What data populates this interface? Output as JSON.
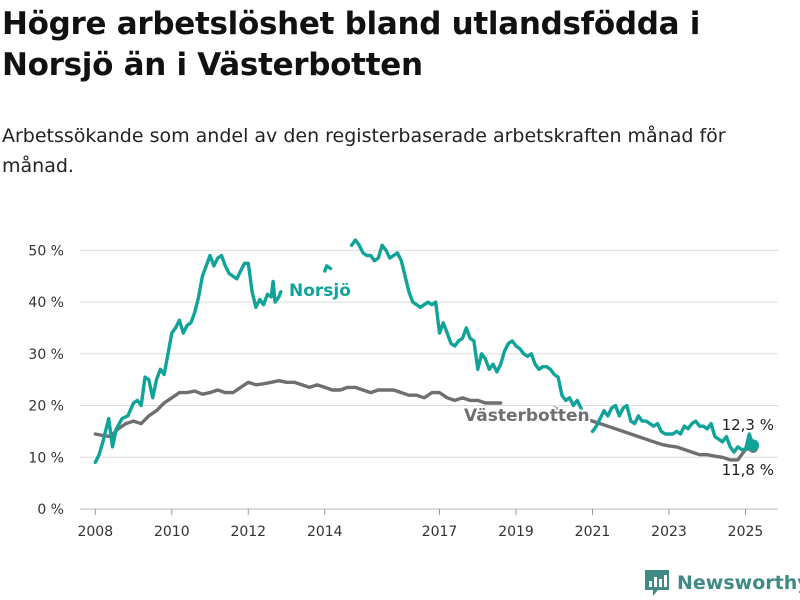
{
  "title": "Högre arbetslöshet bland utlandsfödda i Norsjö än i Västerbotten",
  "subtitle": "Arbetssökande som andel av den registerbaserade arbetskraften månad för månad.",
  "brand": {
    "name": "Newsworthy",
    "icon": "newsworthy-chart-logo-icon"
  },
  "colors": {
    "norsjo": "#10a39a",
    "vasterbotten": "#6f6f72",
    "grid": "#dddddd",
    "brand": "#3f8a85"
  },
  "chart_data": {
    "type": "line",
    "x_unit": "year",
    "xlim": [
      2007.6,
      2025.85
    ],
    "ylim": [
      0,
      52
    ],
    "grid": "horizontal",
    "y_ticks": [
      0,
      10,
      20,
      30,
      40,
      50
    ],
    "y_tick_labels": [
      "0 %",
      "10 %",
      "20 %",
      "30 %",
      "40 %",
      "50 %"
    ],
    "x_ticks": [
      2008,
      2010,
      2012,
      2014,
      2017,
      2019,
      2021,
      2023,
      2025
    ],
    "x_tick_labels": [
      "2008",
      "2010",
      "2012",
      "2014",
      "2017",
      "2019",
      "2021",
      "2023",
      "2025"
    ],
    "series": [
      {
        "name": "Norsjö",
        "color": "#10a39a",
        "end_label": "12,3 %",
        "points": [
          [
            2008.0,
            9
          ],
          [
            2008.1,
            10.5
          ],
          [
            2008.2,
            13
          ],
          [
            2008.3,
            16
          ],
          [
            2008.35,
            17.5
          ],
          [
            2008.45,
            12
          ],
          [
            2008.55,
            15.5
          ],
          [
            2008.7,
            17.5
          ],
          [
            2008.85,
            18
          ],
          [
            2009.0,
            20.5
          ],
          [
            2009.1,
            21
          ],
          [
            2009.2,
            20
          ],
          [
            2009.3,
            25.5
          ],
          [
            2009.4,
            25
          ],
          [
            2009.5,
            21.5
          ],
          [
            2009.6,
            25
          ],
          [
            2009.7,
            27
          ],
          [
            2009.8,
            26
          ],
          [
            2009.9,
            30
          ],
          [
            2010.0,
            34
          ],
          [
            2010.1,
            35
          ],
          [
            2010.2,
            36.5
          ],
          [
            2010.3,
            34
          ],
          [
            2010.4,
            35.5
          ],
          [
            2010.5,
            36
          ],
          [
            2010.6,
            38
          ],
          [
            2010.7,
            41
          ],
          [
            2010.8,
            45
          ],
          [
            2010.9,
            47
          ],
          [
            2011.0,
            49
          ],
          [
            2011.1,
            47
          ],
          [
            2011.2,
            48.5
          ],
          [
            2011.3,
            49
          ],
          [
            2011.4,
            47
          ],
          [
            2011.5,
            45.5
          ],
          [
            2011.6,
            45
          ],
          [
            2011.7,
            44.5
          ],
          [
            2011.8,
            46
          ],
          [
            2011.9,
            47.5
          ],
          [
            2012.0,
            47.5
          ],
          [
            2012.1,
            42
          ],
          [
            2012.2,
            39
          ],
          [
            2012.3,
            40.5
          ],
          [
            2012.4,
            39.5
          ],
          [
            2012.5,
            41.5
          ],
          [
            2012.6,
            41
          ],
          [
            2012.65,
            44
          ],
          [
            2012.7,
            40
          ],
          [
            2012.8,
            41
          ],
          [
            2012.85,
            42
          ],
          null,
          [
            2014.0,
            46
          ],
          [
            2014.05,
            47
          ],
          [
            2014.15,
            46.5
          ],
          null,
          [
            2014.7,
            51
          ],
          [
            2014.8,
            52
          ],
          [
            2014.9,
            51
          ],
          [
            2015.0,
            49.5
          ],
          [
            2015.1,
            49
          ],
          [
            2015.2,
            49
          ],
          [
            2015.3,
            48
          ],
          [
            2015.4,
            48.5
          ],
          [
            2015.5,
            51
          ],
          [
            2015.6,
            50
          ],
          [
            2015.7,
            48.5
          ],
          [
            2015.8,
            49
          ],
          [
            2015.9,
            49.5
          ],
          [
            2016.0,
            48
          ],
          [
            2016.1,
            45
          ],
          [
            2016.2,
            42
          ],
          [
            2016.3,
            40
          ],
          [
            2016.4,
            39.5
          ],
          [
            2016.5,
            39
          ],
          [
            2016.6,
            39.5
          ],
          [
            2016.7,
            40
          ],
          [
            2016.8,
            39.5
          ],
          [
            2016.9,
            40
          ],
          [
            2017.0,
            34
          ],
          [
            2017.1,
            36
          ],
          [
            2017.2,
            34
          ],
          [
            2017.3,
            32
          ],
          [
            2017.4,
            31.5
          ],
          [
            2017.5,
            32.5
          ],
          [
            2017.6,
            33
          ],
          [
            2017.7,
            35
          ],
          [
            2017.8,
            33
          ],
          [
            2017.9,
            32.5
          ],
          [
            2018.0,
            27
          ],
          [
            2018.1,
            30
          ],
          [
            2018.2,
            29
          ],
          [
            2018.3,
            27
          ],
          [
            2018.4,
            28
          ],
          [
            2018.5,
            26.5
          ],
          [
            2018.6,
            28
          ],
          [
            2018.7,
            30.5
          ],
          [
            2018.8,
            32
          ],
          [
            2018.9,
            32.5
          ],
          [
            2019.0,
            31.5
          ],
          [
            2019.1,
            31
          ],
          [
            2019.2,
            30
          ],
          [
            2019.3,
            29.5
          ],
          [
            2019.4,
            30
          ],
          [
            2019.5,
            28
          ],
          [
            2019.6,
            27
          ],
          [
            2019.7,
            27.5
          ],
          [
            2019.8,
            27.5
          ],
          [
            2019.9,
            27
          ],
          [
            2020.0,
            26
          ],
          [
            2020.1,
            25.5
          ],
          [
            2020.2,
            22
          ],
          [
            2020.3,
            21
          ],
          [
            2020.4,
            21.5
          ],
          [
            2020.5,
            20
          ],
          [
            2020.6,
            21
          ],
          [
            2020.7,
            19.5
          ],
          [
            2020.75,
            17.5
          ],
          null,
          [
            2021.0,
            15
          ],
          [
            2021.1,
            16
          ],
          [
            2021.2,
            17.5
          ],
          [
            2021.3,
            19
          ],
          [
            2021.4,
            18
          ],
          [
            2021.5,
            19.5
          ],
          [
            2021.6,
            20
          ],
          [
            2021.7,
            18
          ],
          [
            2021.8,
            19.5
          ],
          [
            2021.9,
            20
          ],
          [
            2022.0,
            17
          ],
          [
            2022.1,
            16.5
          ],
          [
            2022.2,
            18
          ],
          [
            2022.3,
            17
          ],
          [
            2022.4,
            17
          ],
          [
            2022.5,
            16.5
          ],
          [
            2022.6,
            16
          ],
          [
            2022.7,
            16.5
          ],
          [
            2022.8,
            15
          ],
          [
            2022.9,
            14.5
          ],
          [
            2023.0,
            14.5
          ],
          [
            2023.1,
            14.5
          ],
          [
            2023.2,
            15
          ],
          [
            2023.3,
            14.5
          ],
          [
            2023.4,
            16
          ],
          [
            2023.5,
            15.5
          ],
          [
            2023.6,
            16.5
          ],
          [
            2023.7,
            17
          ],
          [
            2023.8,
            16
          ],
          [
            2023.9,
            16
          ],
          [
            2024.0,
            15.5
          ],
          [
            2024.1,
            16.5
          ],
          [
            2024.2,
            14
          ],
          [
            2024.3,
            13.5
          ],
          [
            2024.4,
            13
          ],
          [
            2024.5,
            14
          ],
          [
            2024.6,
            12
          ],
          [
            2024.7,
            11
          ],
          [
            2024.8,
            12
          ],
          [
            2024.9,
            11.5
          ],
          [
            2025.0,
            11.5
          ],
          [
            2025.1,
            14.5
          ],
          [
            2025.2,
            12.3
          ]
        ]
      },
      {
        "name": "Västerbotten",
        "color": "#6f6f72",
        "end_label": "11,8 %",
        "points": [
          [
            2008.0,
            14.5
          ],
          [
            2008.2,
            14.2
          ],
          [
            2008.4,
            14
          ],
          [
            2008.6,
            15.5
          ],
          [
            2008.8,
            16.5
          ],
          [
            2009.0,
            17
          ],
          [
            2009.2,
            16.5
          ],
          [
            2009.4,
            18
          ],
          [
            2009.6,
            19
          ],
          [
            2009.8,
            20.5
          ],
          [
            2010.0,
            21.5
          ],
          [
            2010.2,
            22.5
          ],
          [
            2010.4,
            22.5
          ],
          [
            2010.6,
            22.8
          ],
          [
            2010.8,
            22.2
          ],
          [
            2011.0,
            22.5
          ],
          [
            2011.2,
            23
          ],
          [
            2011.4,
            22.5
          ],
          [
            2011.6,
            22.5
          ],
          [
            2011.8,
            23.5
          ],
          [
            2012.0,
            24.5
          ],
          [
            2012.2,
            24
          ],
          [
            2012.4,
            24.2
          ],
          [
            2012.6,
            24.5
          ],
          [
            2012.8,
            24.8
          ],
          [
            2013.0,
            24.5
          ],
          [
            2013.2,
            24.5
          ],
          [
            2013.4,
            24
          ],
          [
            2013.6,
            23.5
          ],
          [
            2013.8,
            24
          ],
          [
            2014.0,
            23.5
          ],
          [
            2014.2,
            23
          ],
          [
            2014.4,
            23
          ],
          [
            2014.6,
            23.5
          ],
          [
            2014.8,
            23.5
          ],
          [
            2015.0,
            23
          ],
          [
            2015.2,
            22.5
          ],
          [
            2015.4,
            23
          ],
          [
            2015.6,
            23
          ],
          [
            2015.8,
            23
          ],
          [
            2016.0,
            22.5
          ],
          [
            2016.2,
            22
          ],
          [
            2016.4,
            22
          ],
          [
            2016.6,
            21.5
          ],
          [
            2016.8,
            22.5
          ],
          [
            2017.0,
            22.5
          ],
          [
            2017.2,
            21.5
          ],
          [
            2017.4,
            21
          ],
          [
            2017.6,
            21.5
          ],
          [
            2017.8,
            21
          ],
          [
            2018.0,
            21
          ],
          [
            2018.2,
            20.5
          ],
          [
            2018.4,
            20.5
          ],
          [
            2018.6,
            20.5
          ],
          null,
          [
            2020.0,
            19.5
          ],
          [
            2020.2,
            19
          ],
          [
            2020.4,
            18.5
          ],
          [
            2020.6,
            18
          ],
          [
            2020.8,
            17.5
          ],
          [
            2021.0,
            17
          ],
          [
            2021.2,
            16.5
          ],
          [
            2021.4,
            16
          ],
          [
            2021.6,
            15.5
          ],
          [
            2021.8,
            15
          ],
          [
            2022.0,
            14.5
          ],
          [
            2022.2,
            14
          ],
          [
            2022.4,
            13.5
          ],
          [
            2022.6,
            13
          ],
          [
            2022.8,
            12.5
          ],
          [
            2023.0,
            12.2
          ],
          [
            2023.2,
            12
          ],
          [
            2023.4,
            11.5
          ],
          [
            2023.6,
            11
          ],
          [
            2023.8,
            10.5
          ],
          [
            2024.0,
            10.5
          ],
          [
            2024.2,
            10.2
          ],
          [
            2024.4,
            10
          ],
          [
            2024.6,
            9.5
          ],
          [
            2024.8,
            9.5
          ],
          [
            2025.0,
            11.5
          ],
          [
            2025.2,
            11.8
          ]
        ]
      }
    ]
  }
}
